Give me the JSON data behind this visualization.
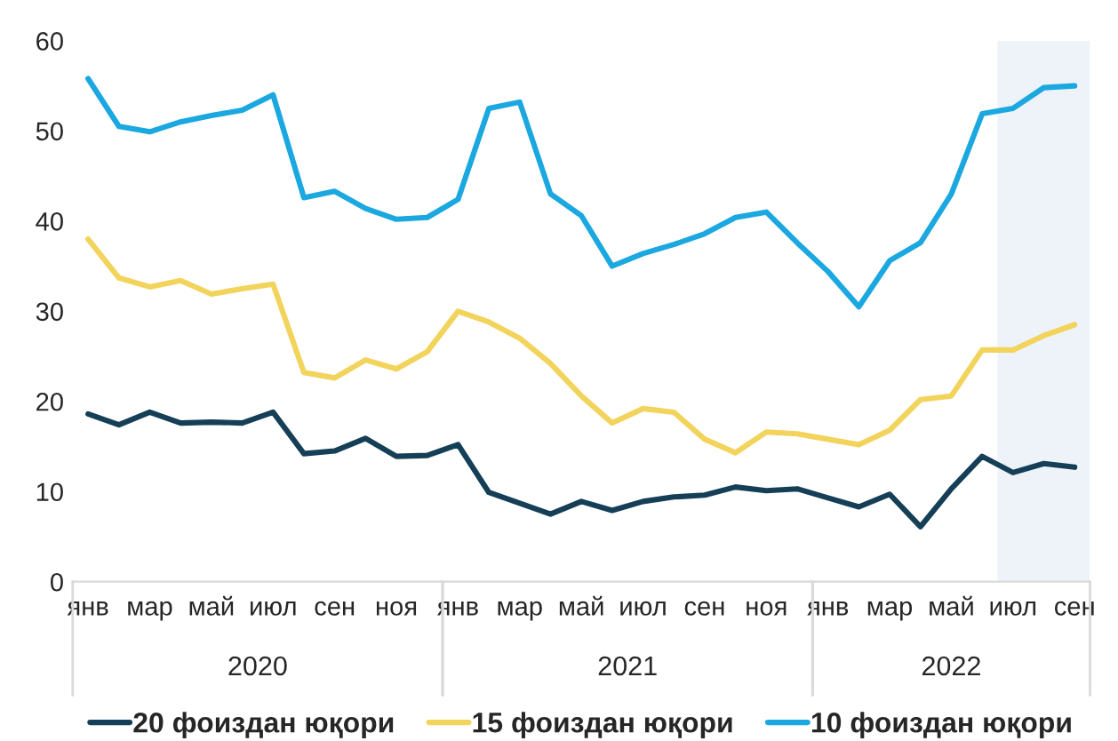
{
  "chart_data": {
    "type": "line",
    "categories": [
      "янв",
      null,
      "мар",
      null,
      "май",
      null,
      "июл",
      null,
      "сен",
      null,
      "ноя",
      null,
      "янв",
      null,
      "мар",
      null,
      "май",
      null,
      "июл",
      null,
      "сен",
      null,
      "ноя",
      null,
      "янв",
      null,
      "мар",
      null,
      "май",
      null,
      "июл",
      null,
      "сен"
    ],
    "series": [
      {
        "name": "20 фоиздан юқори",
        "color": "#153f57",
        "values": [
          18.6,
          17.4,
          18.8,
          17.6,
          17.7,
          17.6,
          18.8,
          14.2,
          14.5,
          15.9,
          13.9,
          14.0,
          15.2,
          9.9,
          8.7,
          7.5,
          8.9,
          7.9,
          8.9,
          9.4,
          9.6,
          10.5,
          10.1,
          10.3,
          9.3,
          8.3,
          9.7,
          6.1,
          10.3,
          13.9,
          12.1,
          13.1,
          12.7
        ]
      },
      {
        "name": "15 фоиздан юқори",
        "color": "#f2d35b",
        "values": [
          38.0,
          33.7,
          32.7,
          33.4,
          31.9,
          32.5,
          33.0,
          23.2,
          22.6,
          24.6,
          23.6,
          25.5,
          30.0,
          28.8,
          27.0,
          24.2,
          20.6,
          17.6,
          19.2,
          18.8,
          15.8,
          14.3,
          16.6,
          16.4,
          15.8,
          15.2,
          16.8,
          20.2,
          20.6,
          25.7,
          25.7,
          27.3,
          28.5
        ]
      },
      {
        "name": "10 фоиздан юқори",
        "color": "#1ba8e0",
        "values": [
          55.8,
          50.5,
          49.9,
          51.0,
          51.7,
          52.3,
          54.0,
          42.6,
          43.3,
          41.4,
          40.2,
          40.4,
          42.4,
          52.5,
          53.2,
          43.0,
          40.6,
          35.0,
          36.4,
          37.4,
          38.6,
          40.4,
          41.0,
          37.6,
          34.4,
          30.5,
          35.6,
          37.6,
          43.0,
          51.9,
          52.5,
          54.8,
          55.0
        ]
      }
    ],
    "ylim": [
      0,
      60
    ],
    "yticks": [
      0,
      10,
      20,
      30,
      40,
      50,
      60
    ],
    "annotations": [
      "2020",
      "2021",
      "2022"
    ],
    "grid": false,
    "legend": "bottom",
    "marker": "none",
    "line_style": "solid"
  }
}
